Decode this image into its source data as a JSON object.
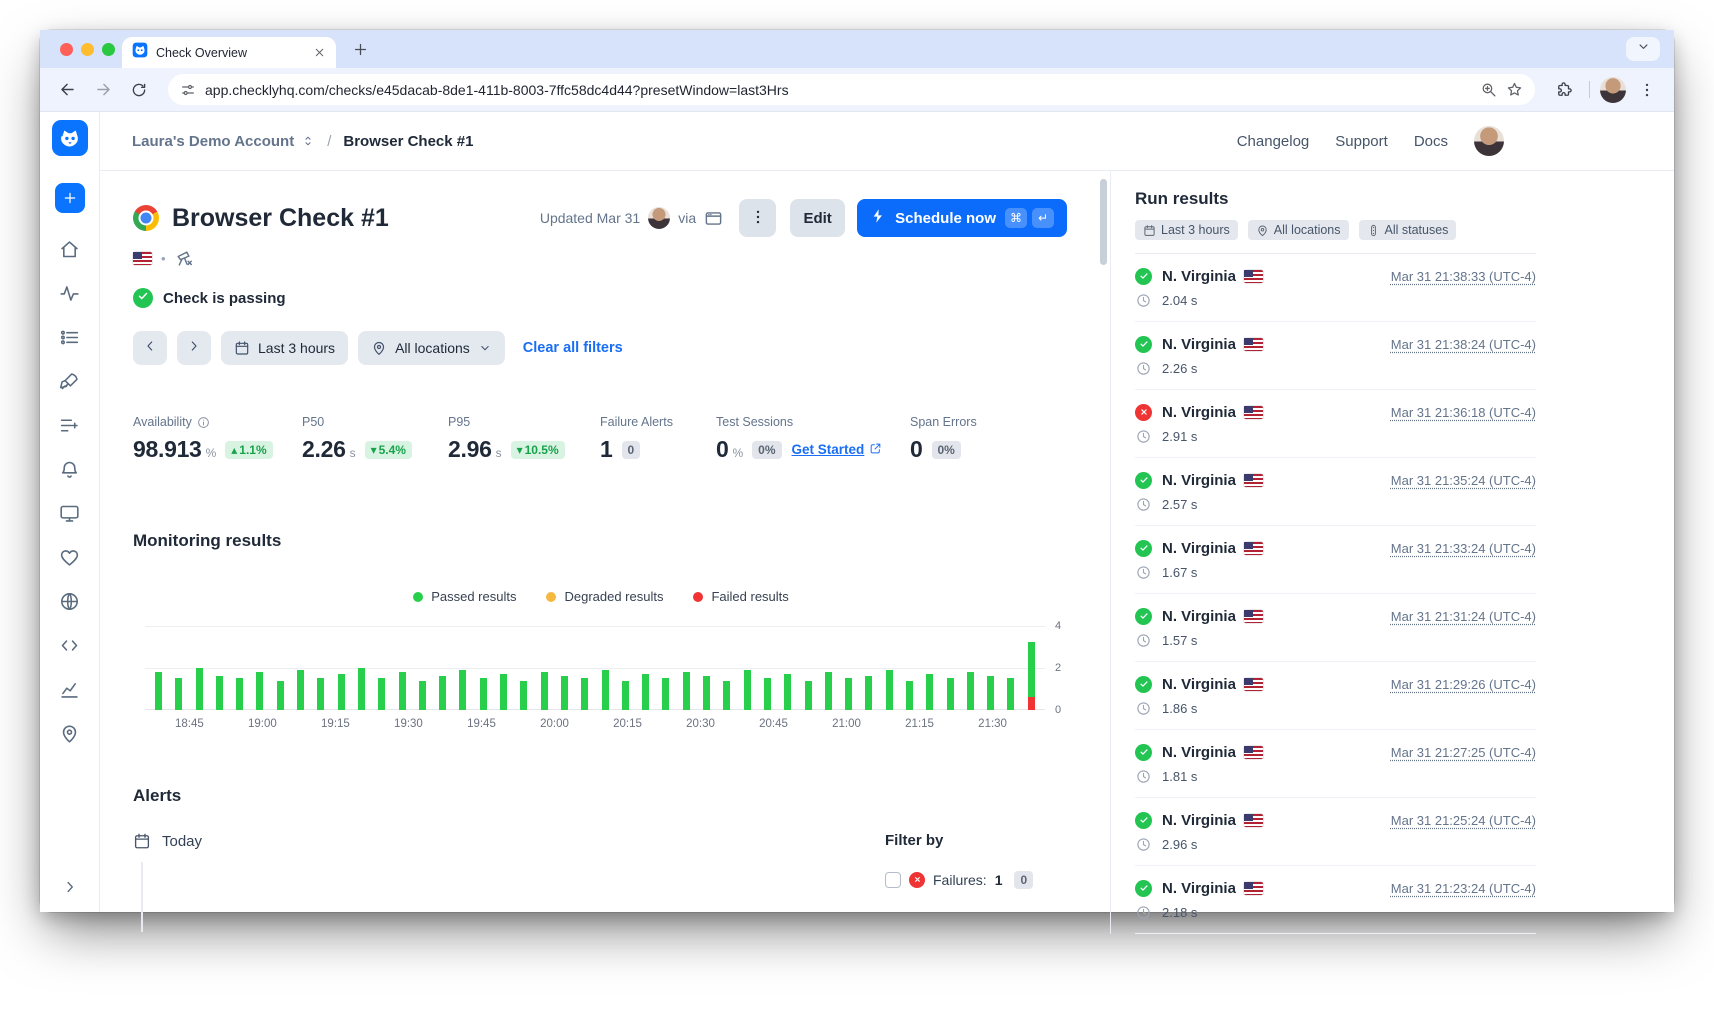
{
  "browser": {
    "tab_title": "Check Overview",
    "url": "app.checklyhq.com/checks/e45dacab-8de1-411b-8003-7ffc58dc4d44?presetWindow=last3Hrs"
  },
  "header": {
    "account": "Laura's Demo Account",
    "separator": "/",
    "page": "Browser Check #1",
    "links": [
      "Changelog",
      "Support",
      "Docs"
    ]
  },
  "sidebar": {
    "nav": [
      "home",
      "activity",
      "checklist",
      "rocket",
      "list-plus",
      "bell",
      "monitor",
      "heartbeat",
      "globe",
      "code",
      "chart-line",
      "map-pin"
    ]
  },
  "main": {
    "title": "Browser Check #1",
    "updated": "Updated Mar 31",
    "via": "via",
    "meta_dot": "•",
    "edit": "Edit",
    "schedule": "Schedule now",
    "schedule_keys": [
      "⌘",
      "↵"
    ],
    "status": "Check is passing",
    "filters": {
      "time": "Last 3 hours",
      "locations": "All locations",
      "clear": "Clear all filters"
    },
    "stats": [
      {
        "label": "Availability",
        "info": true,
        "value": "98.913",
        "unit": "%",
        "badge": {
          "text": "1.1%",
          "dir": "up",
          "tone": "green"
        }
      },
      {
        "label": "P50",
        "value": "2.26",
        "unit": "s",
        "badge": {
          "text": "5.4%",
          "dir": "down",
          "tone": "green"
        }
      },
      {
        "label": "P95",
        "value": "2.96",
        "unit": "s",
        "badge": {
          "text": "10.5%",
          "dir": "down",
          "tone": "green"
        }
      },
      {
        "label": "Failure Alerts",
        "value": "1",
        "badge": {
          "text": "0",
          "tone": "gray"
        }
      },
      {
        "label": "Test Sessions",
        "value": "0",
        "unit": "%",
        "badge": {
          "text": "0%",
          "tone": "gray"
        },
        "link": "Get Started"
      },
      {
        "label": "Span Errors",
        "value": "0",
        "badge": {
          "text": "0%",
          "tone": "gray"
        }
      }
    ],
    "alerts": {
      "title": "Alerts",
      "today": "Today",
      "filter_by": "Filter by",
      "failures_label": "Failures:",
      "failures_count": "1",
      "failures_badge": "0"
    }
  },
  "run_results": {
    "title": "Run results",
    "chips": [
      {
        "icon": "calendar",
        "label": "Last 3 hours"
      },
      {
        "icon": "map-pin",
        "label": "All locations"
      },
      {
        "icon": "statuses",
        "label": "All statuses"
      }
    ],
    "rows": [
      {
        "status": "passed",
        "location": "N. Virginia",
        "time": "Mar 31 21:38:33 (UTC-4)",
        "duration": "2.04 s"
      },
      {
        "status": "passed",
        "location": "N. Virginia",
        "time": "Mar 31 21:38:24 (UTC-4)",
        "duration": "2.26 s"
      },
      {
        "status": "failed",
        "location": "N. Virginia",
        "time": "Mar 31 21:36:18 (UTC-4)",
        "duration": "2.91 s"
      },
      {
        "status": "passed",
        "location": "N. Virginia",
        "time": "Mar 31 21:35:24 (UTC-4)",
        "duration": "2.57 s"
      },
      {
        "status": "passed",
        "location": "N. Virginia",
        "time": "Mar 31 21:33:24 (UTC-4)",
        "duration": "1.67 s"
      },
      {
        "status": "passed",
        "location": "N. Virginia",
        "time": "Mar 31 21:31:24 (UTC-4)",
        "duration": "1.57 s"
      },
      {
        "status": "passed",
        "location": "N. Virginia",
        "time": "Mar 31 21:29:26 (UTC-4)",
        "duration": "1.86 s"
      },
      {
        "status": "passed",
        "location": "N. Virginia",
        "time": "Mar 31 21:27:25 (UTC-4)",
        "duration": "1.81 s"
      },
      {
        "status": "passed",
        "location": "N. Virginia",
        "time": "Mar 31 21:25:24 (UTC-4)",
        "duration": "2.96 s"
      },
      {
        "status": "passed",
        "location": "N. Virginia",
        "time": "Mar 31 21:23:24 (UTC-4)",
        "duration": "2.18 s"
      }
    ]
  },
  "chart_data": {
    "type": "bar",
    "stacked": true,
    "title": "Monitoring results",
    "legend": [
      {
        "label": "Passed results",
        "color": "#28cf4b"
      },
      {
        "label": "Degraded results",
        "color": "#f5b941"
      },
      {
        "label": "Failed results",
        "color": "#f13333"
      }
    ],
    "x_ticks": [
      "18:45",
      "19:00",
      "19:15",
      "19:30",
      "19:45",
      "20:00",
      "20:15",
      "20:30",
      "20:45",
      "21:00",
      "21:15",
      "21:30"
    ],
    "ylim": [
      0,
      4
    ],
    "y_ticks": [
      0,
      2,
      4
    ],
    "series": [
      {
        "name": "Passed",
        "values": [
          1.8,
          1.5,
          2.0,
          1.6,
          1.5,
          1.8,
          1.4,
          1.9,
          1.5,
          1.7,
          2.0,
          1.5,
          1.8,
          1.4,
          1.6,
          1.9,
          1.5,
          1.7,
          1.4,
          1.8,
          1.6,
          1.5,
          1.9,
          1.4,
          1.7,
          1.5,
          1.8,
          1.6,
          1.4,
          1.9,
          1.5,
          1.7,
          1.4,
          1.8,
          1.5,
          1.6,
          1.9,
          1.4,
          1.7,
          1.5,
          1.8,
          1.6,
          1.5,
          2.6
        ]
      },
      {
        "name": "Failed",
        "values": [
          0,
          0,
          0,
          0,
          0,
          0,
          0,
          0,
          0,
          0,
          0,
          0,
          0,
          0,
          0,
          0,
          0,
          0,
          0,
          0,
          0,
          0,
          0,
          0,
          0,
          0,
          0,
          0,
          0,
          0,
          0,
          0,
          0,
          0,
          0,
          0,
          0,
          0,
          0,
          0,
          0,
          0,
          0,
          0.6
        ]
      }
    ]
  },
  "colors": {
    "accent": "#0b6cfb",
    "green": "#23c552",
    "red": "#ef3434",
    "yellow": "#f5b941"
  }
}
